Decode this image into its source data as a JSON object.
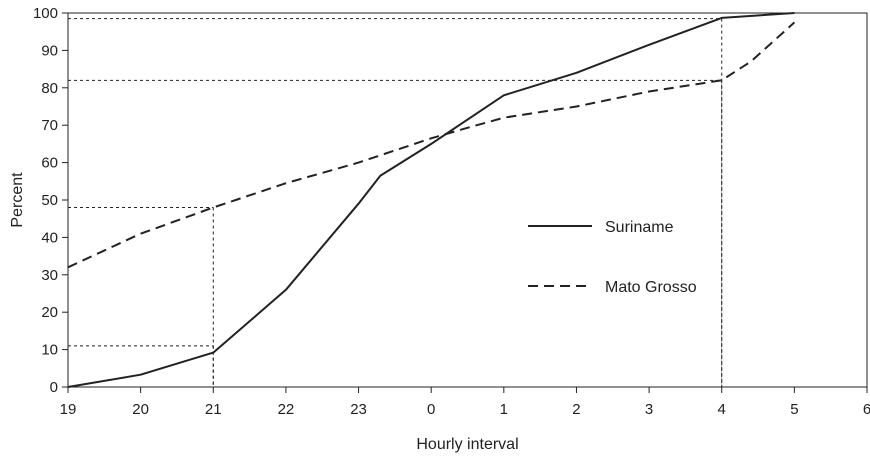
{
  "chart_data": {
    "type": "line",
    "title": "",
    "xlabel": "Hourly interval",
    "ylabel": "Percent",
    "categories": [
      "19",
      "20",
      "21",
      "22",
      "23",
      "0",
      "1",
      "2",
      "3",
      "4",
      "5",
      "6"
    ],
    "ylim": [
      0,
      100
    ],
    "yticks": [
      0,
      10,
      20,
      30,
      40,
      50,
      60,
      70,
      80,
      90,
      100
    ],
    "grid": false,
    "legend_position": "right",
    "series": [
      {
        "name": "Suriname",
        "style": "solid",
        "color": "#222222",
        "points": [
          [
            0,
            0
          ],
          [
            1,
            3.3
          ],
          [
            2,
            9.2
          ],
          [
            3,
            26
          ],
          [
            4,
            49
          ],
          [
            4.3,
            56.5
          ],
          [
            5,
            65
          ],
          [
            6,
            78
          ],
          [
            7,
            84
          ],
          [
            8,
            91.5
          ],
          [
            9,
            98.7
          ],
          [
            10,
            100
          ]
        ]
      },
      {
        "name": "Mato Grosso",
        "style": "dashed",
        "color": "#222222",
        "points": [
          [
            0,
            32
          ],
          [
            1,
            41
          ],
          [
            2,
            48
          ],
          [
            3,
            54.5
          ],
          [
            4,
            60
          ],
          [
            5,
            66.5
          ],
          [
            5.5,
            69.3
          ],
          [
            6,
            72
          ],
          [
            7,
            75
          ],
          [
            8,
            79
          ],
          [
            9,
            82
          ],
          [
            9.4,
            87
          ],
          [
            10,
            97.5
          ]
        ]
      }
    ],
    "reference_lines": [
      {
        "x": 2,
        "y": 48
      },
      {
        "x": 2,
        "y": 11
      },
      {
        "x": 9,
        "y": 98.5
      },
      {
        "x": 9,
        "y": 82
      }
    ]
  }
}
